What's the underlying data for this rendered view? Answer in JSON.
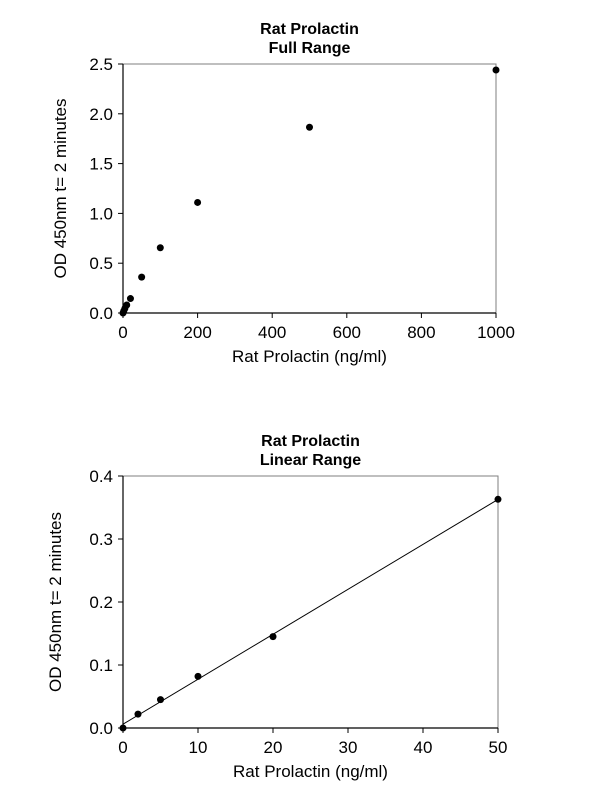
{
  "chart_data": [
    {
      "type": "scatter",
      "title": [
        "Rat Prolactin",
        "Full Range"
      ],
      "xlabel": "Rat Prolactin (ng/ml)",
      "ylabel": "OD 450nm t= 2 minutes",
      "xlim": [
        0,
        1000
      ],
      "ylim": [
        0,
        2.5
      ],
      "xticks": [
        "0",
        "200",
        "400",
        "600",
        "800",
        "1000"
      ],
      "xtick_values": [
        0,
        200,
        400,
        600,
        800,
        1000
      ],
      "yticks": [
        "0.0",
        "0.5",
        "1.0",
        "1.5",
        "2.0",
        "2.5"
      ],
      "ytick_values": [
        0,
        0.5,
        1.0,
        1.5,
        2.0,
        2.5
      ],
      "grid": false,
      "series": [
        {
          "points": [
            [
              0,
              0.0
            ],
            [
              2,
              0.02
            ],
            [
              5,
              0.045
            ],
            [
              10,
              0.08
            ],
            [
              20,
              0.145
            ],
            [
              50,
              0.36
            ],
            [
              100,
              0.655
            ],
            [
              200,
              1.11
            ],
            [
              500,
              1.865
            ],
            [
              1000,
              2.44
            ]
          ]
        }
      ]
    },
    {
      "type": "scatter",
      "title": [
        "Rat Prolactin",
        "Linear Range"
      ],
      "xlabel": "Rat Prolactin (ng/ml)",
      "ylabel": "OD 450nm t= 2 minutes",
      "xlim": [
        0,
        50
      ],
      "ylim": [
        0,
        0.4
      ],
      "xticks": [
        "0",
        "10",
        "20",
        "30",
        "40",
        "50"
      ],
      "xtick_values": [
        0,
        10,
        20,
        30,
        40,
        50
      ],
      "yticks": [
        "0.0",
        "0.1",
        "0.2",
        "0.3",
        "0.4"
      ],
      "ytick_values": [
        0,
        0.1,
        0.2,
        0.3,
        0.4
      ],
      "grid": false,
      "trendline": true,
      "series": [
        {
          "points": [
            [
              0,
              0.0
            ],
            [
              2,
              0.022
            ],
            [
              5,
              0.045
            ],
            [
              10,
              0.082
            ],
            [
              20,
              0.145
            ],
            [
              50,
              0.363
            ]
          ]
        }
      ]
    }
  ]
}
